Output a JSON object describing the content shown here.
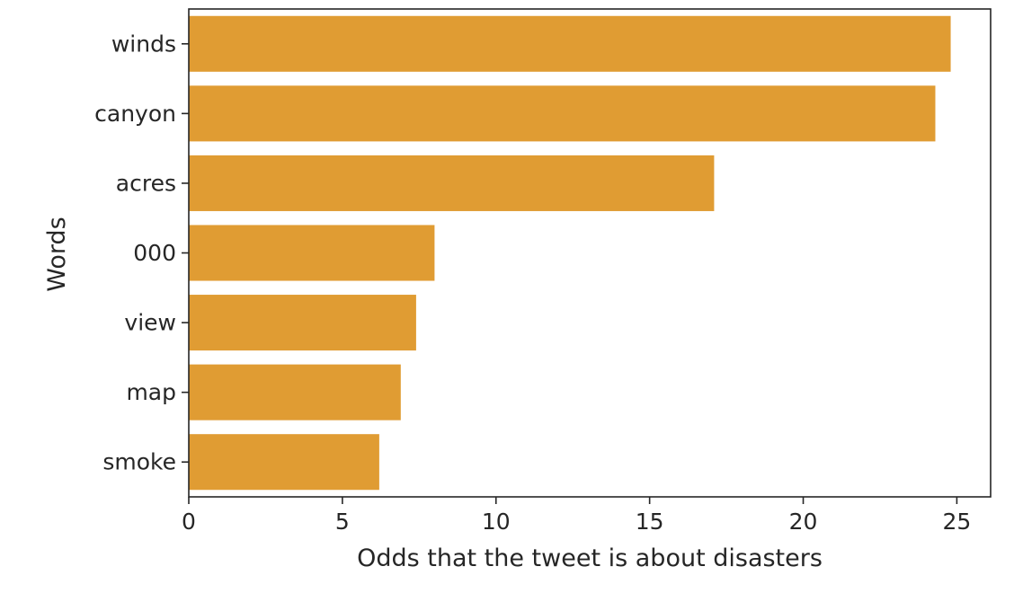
{
  "chart_data": {
    "type": "bar",
    "orientation": "horizontal",
    "title": "",
    "xlabel": "Odds that the tweet is about disasters",
    "ylabel": "Words",
    "categories": [
      "winds",
      "canyon",
      "acres",
      "000",
      "view",
      "map",
      "smoke"
    ],
    "values": [
      24.8,
      24.3,
      17.1,
      8.0,
      7.4,
      6.9,
      6.2
    ],
    "xlim": [
      0,
      26.1
    ],
    "xticks": [
      0,
      5,
      10,
      15,
      20,
      25
    ],
    "bar_color": "#e09c33",
    "grid": false,
    "legend": "none"
  }
}
